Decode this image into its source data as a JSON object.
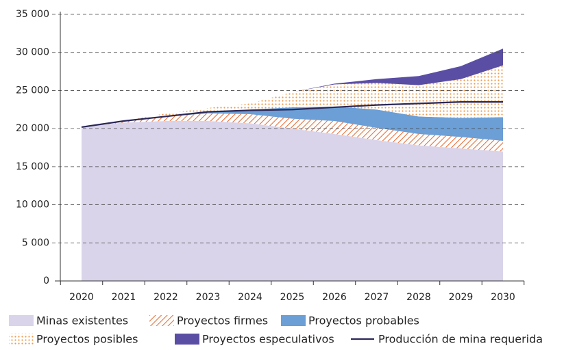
{
  "chart_data": {
    "type": "stacked_area",
    "categories": [
      "2020",
      "2021",
      "2022",
      "2023",
      "2024",
      "2025",
      "2026",
      "2027",
      "2028",
      "2029",
      "2030"
    ],
    "ylim": [
      0,
      35000
    ],
    "yticks": [
      0,
      {
        "value": 5000,
        "label": "5 000"
      },
      {
        "value": 10000,
        "label": "10 000"
      },
      {
        "value": 15000,
        "label": "15 000"
      },
      {
        "value": 20000,
        "label": "20 000"
      },
      {
        "value": 25000,
        "label": "25 000"
      },
      {
        "value": 30000,
        "label": "30 000"
      },
      {
        "value": 35000,
        "label": "35 000"
      }
    ],
    "grid": true,
    "legend": "bottom",
    "series": [
      {
        "name": "Minas existentes",
        "color": "#d9d4ea",
        "pattern": "solid",
        "values": [
          20200,
          20800,
          21000,
          21000,
          20700,
          20000,
          19300,
          18500,
          17800,
          17400,
          17000
        ]
      },
      {
        "name": "Proyectos firmes",
        "color": "#e8703a",
        "pattern": "hatch",
        "values": [
          0,
          200,
          600,
          1000,
          1200,
          1300,
          1700,
          1600,
          1500,
          1500,
          1400
        ]
      },
      {
        "name": "Proyectos probables",
        "color": "#6b9fd6",
        "pattern": "solid",
        "values": [
          0,
          0,
          0,
          100,
          600,
          1500,
          1900,
          2400,
          2300,
          2500,
          3100
        ]
      },
      {
        "name": "Proyectos posibles",
        "color": "#ef9a4c",
        "pattern": "dots",
        "values": [
          0,
          0,
          400,
          600,
          800,
          2000,
          2900,
          3500,
          4100,
          5100,
          6800
        ]
      },
      {
        "name": "Proyectos especulativos",
        "color": "#5a4ea4",
        "pattern": "solid",
        "values": [
          0,
          0,
          0,
          0,
          0,
          0,
          100,
          500,
          1200,
          1700,
          2200
        ]
      },
      {
        "name": "Producción de mina requerida",
        "color": "#2a2858",
        "type": "line",
        "values": [
          20200,
          21000,
          21600,
          22200,
          22400,
          22500,
          22800,
          23100,
          23300,
          23500,
          23500
        ]
      }
    ]
  }
}
